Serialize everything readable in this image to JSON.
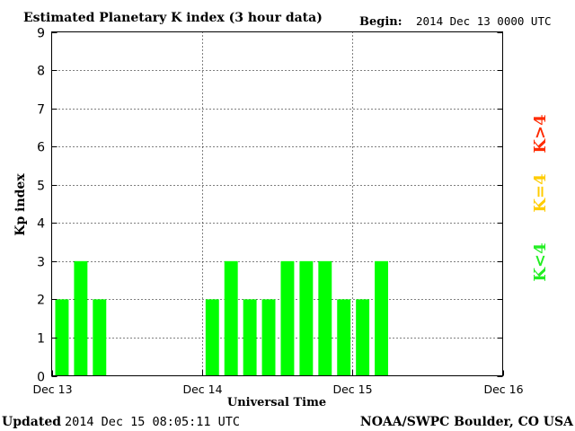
{
  "header": {
    "title": "Estimated Planetary K index (3 hour data)",
    "begin_label": "Begin:",
    "begin_value": "2014 Dec 13 0000 UTC"
  },
  "footer": {
    "updated_label": "Updated",
    "updated_value": "2014 Dec 15 08:05:11 UTC",
    "credit": "NOAA/SWPC Boulder, CO USA"
  },
  "legend": {
    "high": {
      "label": "K>4",
      "color": "#ff2a00"
    },
    "mid": {
      "label": "K=4",
      "color": "#ffcc00"
    },
    "low": {
      "label": "K<4",
      "color": "#22ee22"
    }
  },
  "chart_data": {
    "type": "bar",
    "title": "Estimated Planetary K index (3 hour data)",
    "xlabel": "Universal Time",
    "ylabel": "Kp index",
    "ylim": [
      0,
      9
    ],
    "yticks": [
      0,
      1,
      2,
      3,
      4,
      5,
      6,
      7,
      8,
      9
    ],
    "xlim_hours": [
      0,
      72
    ],
    "x_tick_labels": [
      "Dec 13",
      "Dec 14",
      "Dec 15",
      "Dec 16"
    ],
    "grid": true,
    "bar_color": "#00ff00",
    "series": [
      {
        "bars": [
          {
            "time": "2014 Dec 13 00:00",
            "value": 2
          },
          {
            "time": "2014 Dec 13 03:00",
            "value": 3
          },
          {
            "time": "2014 Dec 13 06:00",
            "value": 2
          },
          {
            "time": "2014 Dec 14 00:00",
            "value": 2
          },
          {
            "time": "2014 Dec 14 03:00",
            "value": 3
          },
          {
            "time": "2014 Dec 14 06:00",
            "value": 2
          },
          {
            "time": "2014 Dec 14 09:00",
            "value": 2
          },
          {
            "time": "2014 Dec 14 12:00",
            "value": 3
          },
          {
            "time": "2014 Dec 14 15:00",
            "value": 3
          },
          {
            "time": "2014 Dec 14 18:00",
            "value": 3
          },
          {
            "time": "2014 Dec 14 21:00",
            "value": 2
          },
          {
            "time": "2014 Dec 15 00:00",
            "value": 2
          },
          {
            "time": "2014 Dec 15 03:00",
            "value": 3
          }
        ]
      }
    ]
  }
}
